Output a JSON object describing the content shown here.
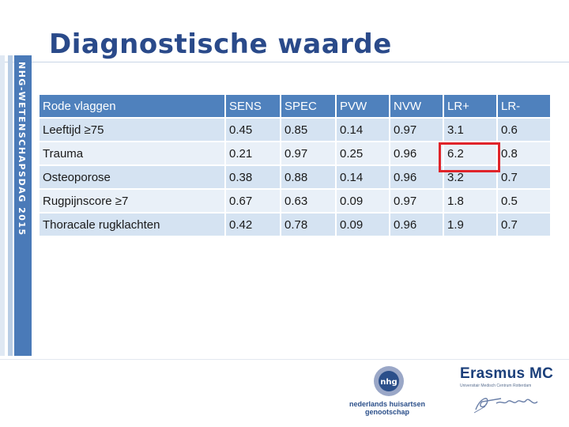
{
  "title": "Diagnostische waarde",
  "side_label": "NHG-WETENSCHAPSDAG 2015",
  "table": {
    "header": [
      "Rode vlaggen",
      "SENS",
      "SPEC",
      "PVW",
      "NVW",
      "LR+",
      "LR-"
    ],
    "rows": [
      [
        "Leeftijd ≥75",
        "0.45",
        "0.85",
        "0.14",
        "0.97",
        "3.1",
        "0.6"
      ],
      [
        "Trauma",
        "0.21",
        "0.97",
        "0.25",
        "0.96",
        "6.2",
        "0.8"
      ],
      [
        "Osteoporose",
        "0.38",
        "0.88",
        "0.14",
        "0.96",
        "3.2",
        "0.7"
      ],
      [
        "Rugpijnscore ≥7",
        "0.67",
        "0.63",
        "0.09",
        "0.97",
        "1.8",
        "0.5"
      ],
      [
        "Thoracale rugklachten",
        "0.42",
        "0.78",
        "0.09",
        "0.96",
        "1.9",
        "0.7"
      ]
    ]
  },
  "logos": {
    "nhg": {
      "mark": "nhg",
      "line1": "nederlands huisartsen",
      "line2": "genootschap"
    },
    "erasmus": {
      "name": "Erasmus MC",
      "sub": "Universitair Medisch Centrum Rotterdam"
    }
  },
  "colors": {
    "title": "#2a4a8a",
    "header_bg": "#4f81bd",
    "row_bg": "#d5e3f2",
    "row_alt_bg": "#e9f0f8",
    "highlight": "#e0242a"
  }
}
